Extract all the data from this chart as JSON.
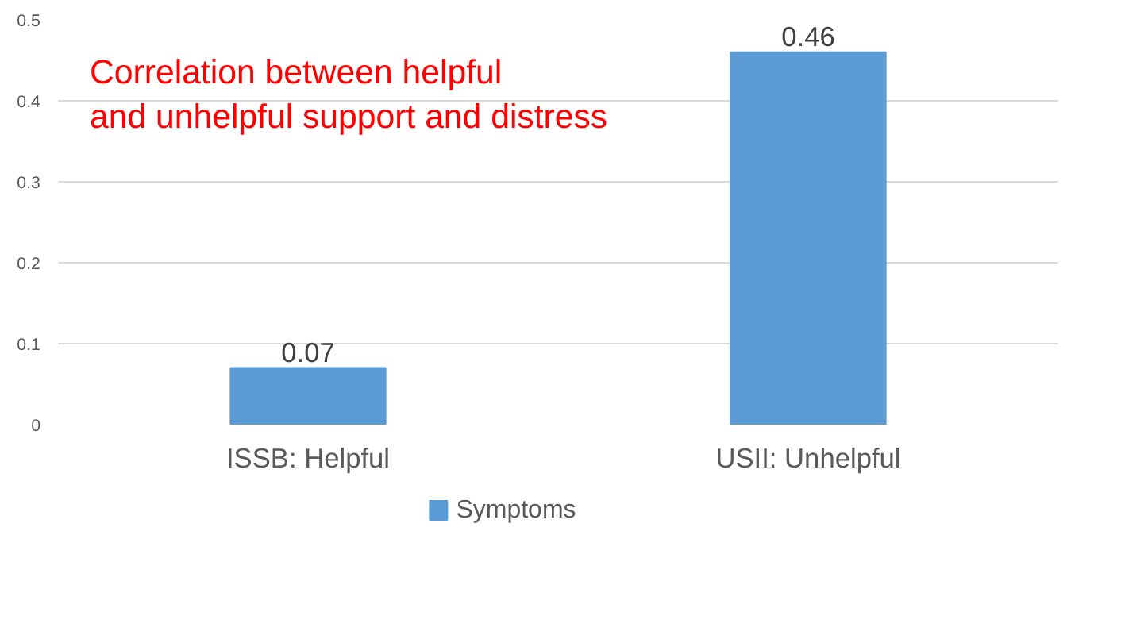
{
  "chart_data": {
    "type": "bar",
    "title": "Correlation between helpful\nand unhelpful support and distress",
    "categories": [
      "ISSB: Helpful",
      "USII: Unhelpful"
    ],
    "series": [
      {
        "name": "Symptoms",
        "color": "#5b9bd5",
        "values": [
          0.07,
          0.46
        ]
      }
    ],
    "ylim": [
      0,
      0.5
    ],
    "yticks": [
      0,
      0.1,
      0.2,
      0.3,
      0.4,
      0.5
    ],
    "grid": "y",
    "legend": "bottom",
    "data_labels": true
  }
}
